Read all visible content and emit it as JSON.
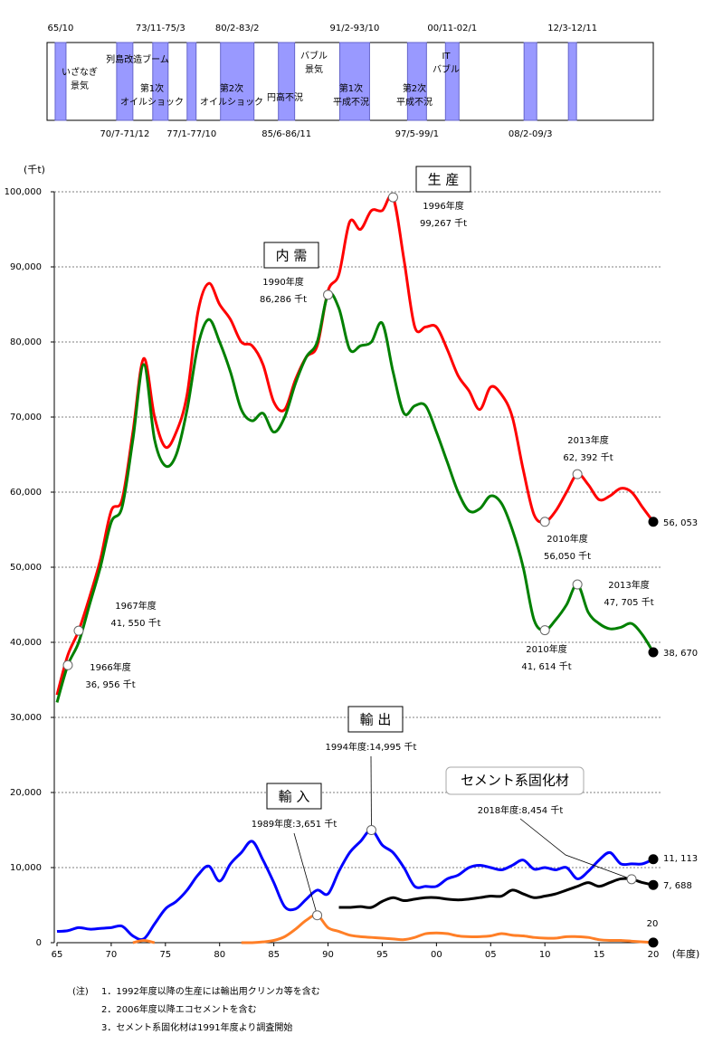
{
  "timeline": {
    "periods": [
      {
        "label": "65/10",
        "start": 1964.83,
        "end": 1965.83
      },
      {
        "label": "70/7-71/12",
        "start": 1970.5,
        "end": 1972.0
      },
      {
        "label": "73/11-75/3",
        "start": 1973.83,
        "end": 1975.25
      },
      {
        "label": "77/1-77/10",
        "start": 1977.0,
        "end": 1977.83
      },
      {
        "label": "80/2-83/2",
        "start": 1980.08,
        "end": 1983.17
      },
      {
        "label": "85/6-86/11",
        "start": 1985.42,
        "end": 1986.92
      },
      {
        "label": "91/2-93/10",
        "start": 1991.08,
        "end": 1993.83
      },
      {
        "label": "97/5-99/1",
        "start": 1997.33,
        "end": 1999.08
      },
      {
        "label": "00/11-02/1",
        "start": 2000.83,
        "end": 2002.08
      },
      {
        "label": "08/2-09/3",
        "start": 2008.08,
        "end": 2009.25
      },
      {
        "label": "12/3-12/11",
        "start": 2012.17,
        "end": 2012.92
      }
    ],
    "names": [
      [
        "いざなぎ",
        "景気"
      ],
      [
        "列島改造ブーム"
      ],
      [
        "第1次",
        "オイルショック"
      ],
      [
        "第2次",
        "オイルショック"
      ],
      [
        "円高不況"
      ],
      [
        "バブル",
        "景気"
      ],
      [
        "第1次",
        "平成不況"
      ],
      [
        "第2次",
        "平成不況"
      ],
      [
        "IT",
        "バブル"
      ]
    ]
  },
  "chart_data": {
    "type": "line",
    "y_label": "(千t)",
    "x_label": "(年度)",
    "x": [
      1965,
      1966,
      1967,
      1968,
      1969,
      1970,
      1971,
      1972,
      1973,
      1974,
      1975,
      1976,
      1977,
      1978,
      1979,
      1980,
      1981,
      1982,
      1983,
      1984,
      1985,
      1986,
      1987,
      1988,
      1989,
      1990,
      1991,
      1992,
      1993,
      1994,
      1995,
      1996,
      1997,
      1998,
      1999,
      2000,
      2001,
      2002,
      2003,
      2004,
      2005,
      2006,
      2007,
      2008,
      2009,
      2010,
      2011,
      2012,
      2013,
      2014,
      2015,
      2016,
      2017,
      2018,
      2019,
      2020
    ],
    "xlim": [
      1965,
      2020
    ],
    "xticks": [
      {
        "value": 1965,
        "label": "65"
      },
      {
        "value": 1970,
        "label": "70"
      },
      {
        "value": 1975,
        "label": "75"
      },
      {
        "value": 1980,
        "label": "80"
      },
      {
        "value": 1985,
        "label": "85"
      },
      {
        "value": 1990,
        "label": "90"
      },
      {
        "value": 1995,
        "label": "95"
      },
      {
        "value": 2000,
        "label": "00"
      },
      {
        "value": 2005,
        "label": "05"
      },
      {
        "value": 2010,
        "label": "10"
      },
      {
        "value": 2015,
        "label": "15"
      },
      {
        "value": 2020,
        "label": "20"
      }
    ],
    "ylim": [
      0,
      100000
    ],
    "yticks": [
      0,
      {
        "value": 10000,
        "label": "10,000"
      },
      {
        "value": 20000,
        "label": "20,000"
      },
      {
        "value": 30000,
        "label": "30,000"
      },
      {
        "value": 40000,
        "label": "40,000"
      },
      {
        "value": 50000,
        "label": "50,000"
      },
      {
        "value": 60000,
        "label": "60,000"
      },
      {
        "value": 70000,
        "label": "70,000"
      },
      {
        "value": 80000,
        "label": "80,000"
      },
      {
        "value": 90000,
        "label": "90,000"
      },
      {
        "value": 100000,
        "label": "100,000"
      }
    ],
    "grid": true,
    "series": [
      {
        "name": "生 産",
        "color": "#ff0000",
        "values": [
          33000,
          38300,
          41550,
          46000,
          51000,
          57500,
          59000,
          68000,
          77800,
          70000,
          66000,
          68000,
          73000,
          84000,
          87800,
          85000,
          83000,
          80000,
          79500,
          77000,
          72000,
          71000,
          75000,
          78000,
          79500,
          86800,
          89000,
          96000,
          95000,
          97500,
          97500,
          99267,
          91000,
          82000,
          82000,
          82000,
          79000,
          75500,
          73500,
          71000,
          74000,
          73000,
          70000,
          63000,
          57000,
          56050,
          57500,
          60000,
          62392,
          61000,
          59000,
          59500,
          60500,
          60000,
          58000,
          56053
        ],
        "value_labels": [
          null,
          null,
          [
            "1967年度",
            "41, 550 千t"
          ],
          null,
          null,
          null,
          null,
          null,
          null,
          null,
          null,
          null,
          null,
          null,
          null,
          null,
          null,
          null,
          null,
          null,
          null,
          null,
          null,
          null,
          null,
          null,
          null,
          null,
          null,
          null,
          null,
          [
            "1996年度",
            "99,267 千t"
          ],
          null,
          null,
          null,
          null,
          null,
          null,
          null,
          null,
          null,
          null,
          null,
          null,
          null,
          [
            "2010年度",
            "56,050 千t"
          ],
          null,
          null,
          [
            "2013年度",
            "62, 392 千t"
          ],
          null,
          null,
          null,
          null,
          null,
          null,
          "56, 053"
        ]
      },
      {
        "name": "内 需",
        "color": "#008000",
        "values": [
          32000,
          36956,
          40000,
          45000,
          50000,
          56000,
          58000,
          67000,
          77000,
          67000,
          63500,
          65000,
          71000,
          79500,
          83000,
          80000,
          76000,
          71000,
          69500,
          70500,
          68000,
          70000,
          74500,
          78000,
          80000,
          86286,
          84500,
          79000,
          79500,
          80000,
          82500,
          76000,
          70500,
          71500,
          71500,
          68000,
          64000,
          60000,
          57500,
          57800,
          59500,
          58500,
          55000,
          50000,
          43000,
          41614,
          43000,
          45000,
          47705,
          44000,
          42500,
          41800,
          42000,
          42500,
          41000,
          38670
        ],
        "value_labels": [
          null,
          [
            "1966年度",
            "36, 956 千t"
          ],
          null,
          null,
          null,
          null,
          null,
          null,
          null,
          null,
          null,
          null,
          null,
          null,
          null,
          null,
          null,
          null,
          null,
          null,
          null,
          null,
          null,
          null,
          null,
          [
            "1990年度",
            "86,286 千t"
          ],
          null,
          null,
          null,
          null,
          null,
          null,
          null,
          null,
          null,
          null,
          null,
          null,
          null,
          null,
          null,
          null,
          null,
          null,
          null,
          [
            "2010年度",
            "41, 614 千t"
          ],
          null,
          null,
          [
            "2013年度",
            "47, 705 千t"
          ],
          null,
          null,
          null,
          null,
          null,
          null,
          "38, 670"
        ]
      },
      {
        "name": "輸 出",
        "color": "#0000ff",
        "values": [
          1500,
          1600,
          2000,
          1800,
          1900,
          2000,
          2200,
          900,
          500,
          2500,
          4500,
          5500,
          7000,
          9000,
          10200,
          8200,
          10500,
          12000,
          13500,
          11000,
          8000,
          4800,
          4500,
          5800,
          7000,
          6500,
          9500,
          12000,
          13500,
          14995,
          13000,
          12000,
          10000,
          7500,
          7500,
          7500,
          8500,
          9000,
          10000,
          10300,
          10000,
          9700,
          10300,
          11000,
          9800,
          10000,
          9700,
          10000,
          8500,
          9500,
          11000,
          12000,
          10500,
          10500,
          10500,
          11113
        ],
        "value_labels": [
          null,
          null,
          null,
          null,
          null,
          null,
          null,
          null,
          null,
          null,
          null,
          null,
          null,
          null,
          null,
          null,
          null,
          null,
          null,
          null,
          null,
          null,
          null,
          null,
          null,
          null,
          null,
          null,
          null,
          "1994年度:14,995 千t",
          null,
          null,
          null,
          null,
          null,
          null,
          null,
          null,
          null,
          null,
          null,
          null,
          null,
          null,
          null,
          null,
          null,
          null,
          null,
          null,
          null,
          null,
          null,
          null,
          null,
          "11, 113"
        ]
      },
      {
        "name": "輸 入",
        "color": "#ff7f27",
        "values": [
          null,
          null,
          null,
          null,
          null,
          null,
          null,
          0,
          300,
          0,
          null,
          null,
          null,
          null,
          null,
          null,
          null,
          0,
          0,
          100,
          300,
          800,
          1800,
          3000,
          3651,
          2000,
          1500,
          1000,
          800,
          700,
          600,
          500,
          400,
          700,
          1200,
          1300,
          1200,
          900,
          800,
          800,
          900,
          1200,
          1000,
          900,
          700,
          600,
          600,
          800,
          800,
          700,
          400,
          300,
          300,
          200,
          100,
          20
        ],
        "value_labels": [
          null,
          null,
          null,
          null,
          null,
          null,
          null,
          null,
          null,
          null,
          null,
          null,
          null,
          null,
          null,
          null,
          null,
          null,
          null,
          null,
          null,
          null,
          null,
          null,
          "1989年度:3,651 千t",
          null,
          null,
          null,
          null,
          null,
          null,
          null,
          null,
          null,
          null,
          null,
          null,
          null,
          null,
          null,
          null,
          null,
          null,
          null,
          null,
          null,
          null,
          null,
          null,
          null,
          null,
          null,
          null,
          null,
          null,
          "20"
        ]
      },
      {
        "name": "セメント系固化材",
        "color": "#000000",
        "values": [
          null,
          null,
          null,
          null,
          null,
          null,
          null,
          null,
          null,
          null,
          null,
          null,
          null,
          null,
          null,
          null,
          null,
          null,
          null,
          null,
          null,
          null,
          null,
          null,
          null,
          null,
          4700,
          4700,
          4800,
          4700,
          5500,
          6000,
          5600,
          5800,
          6000,
          6000,
          5800,
          5700,
          5800,
          6000,
          6200,
          6200,
          7000,
          6500,
          6000,
          6200,
          6500,
          7000,
          7500,
          8000,
          7500,
          8000,
          8500,
          8454,
          8000,
          7688
        ],
        "value_labels": [
          null,
          null,
          null,
          null,
          null,
          null,
          null,
          null,
          null,
          null,
          null,
          null,
          null,
          null,
          null,
          null,
          null,
          null,
          null,
          null,
          null,
          null,
          null,
          null,
          null,
          null,
          null,
          null,
          null,
          null,
          null,
          null,
          null,
          null,
          null,
          null,
          null,
          null,
          null,
          null,
          null,
          null,
          null,
          null,
          null,
          null,
          null,
          null,
          null,
          null,
          null,
          null,
          null,
          "2018年度:8,454 千t",
          null,
          "7, 688"
        ]
      }
    ]
  },
  "notes": {
    "prefix": "(注)",
    "items": [
      "1．1992年度以降の生産には輸出用クリンカ等を含む",
      "2．2006年度以降エコセメントを含む",
      "3．セメント系固化材は1991年度より調査開始"
    ]
  }
}
